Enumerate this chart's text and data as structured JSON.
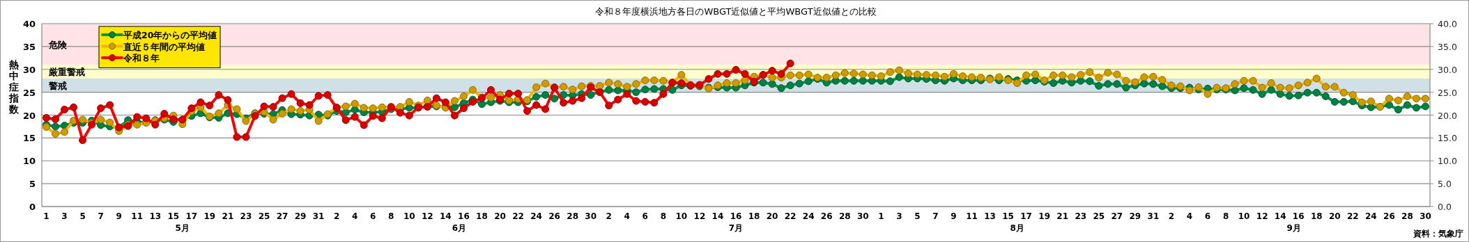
{
  "chart_data": {
    "type": "line",
    "title": "令和８年度横浜地方各日のWBGT近似値と平均WBGT近似値との比較",
    "ylabel": "熱中症指数",
    "annotations": [
      "5月",
      "6月",
      "7月",
      "8月",
      "9月",
      "資料：気象庁"
    ],
    "x": [
      "--05-01",
      "--05-02",
      "--05-03",
      "--05-04",
      "--05-05",
      "--05-06",
      "--05-07",
      "--05-08",
      "--05-09",
      "--05-10",
      "--05-11",
      "--05-12",
      "--05-13",
      "--05-14",
      "--05-15",
      "--05-16",
      "--05-17",
      "--05-18",
      "--05-19",
      "--05-20",
      "--05-21",
      "--05-22",
      "--05-23",
      "--05-24",
      "--05-25",
      "--05-26",
      "--05-27",
      "--05-28",
      "--05-29",
      "--05-30",
      "--05-31",
      "--06-01",
      "--06-02",
      "--06-03",
      "--06-04",
      "--06-05",
      "--06-06",
      "--06-07",
      "--06-08",
      "--06-09",
      "--06-10",
      "--06-11",
      "--06-12",
      "--06-13",
      "--06-14",
      "--06-15",
      "--06-16",
      "--06-17",
      "--06-18",
      "--06-19",
      "--06-20",
      "--06-21",
      "--06-22",
      "--06-23",
      "--06-24",
      "--06-25",
      "--06-26",
      "--06-27",
      "--06-28",
      "--06-29",
      "--06-30",
      "--07-01",
      "--07-02",
      "--07-03",
      "--07-04",
      "--07-05",
      "--07-06",
      "--07-07",
      "--07-08",
      "--07-09",
      "--07-10",
      "--07-11",
      "--07-12",
      "--07-13",
      "--07-14",
      "--07-15",
      "--07-16",
      "--07-17",
      "--07-18",
      "--07-19",
      "--07-20",
      "--07-21",
      "--07-22",
      "--07-23",
      "--07-24",
      "--07-25",
      "--07-26",
      "--07-27",
      "--07-28",
      "--07-29",
      "--07-30",
      "--07-31",
      "--08-01",
      "--08-02",
      "--08-03",
      "--08-04",
      "--08-05",
      "--08-06",
      "--08-07",
      "--08-08",
      "--08-09",
      "--08-10",
      "--08-11",
      "--08-12",
      "--08-13",
      "--08-14",
      "--08-15",
      "--08-16",
      "--08-17",
      "--08-18",
      "--08-19",
      "--08-20",
      "--08-21",
      "--08-22",
      "--08-23",
      "--08-24",
      "--08-25",
      "--08-26",
      "--08-27",
      "--08-28",
      "--08-29",
      "--08-30",
      "--08-31",
      "--09-01",
      "--09-02",
      "--09-03",
      "--09-04",
      "--09-05",
      "--09-06",
      "--09-07",
      "--09-08",
      "--09-09",
      "--09-10",
      "--09-11",
      "--09-12",
      "--09-13",
      "--09-14",
      "--09-15",
      "--09-16",
      "--09-17",
      "--09-18",
      "--09-19",
      "--09-20",
      "--09-21",
      "--09-22",
      "--09-23",
      "--09-24",
      "--09-25",
      "--09-26",
      "--09-27",
      "--09-28",
      "--09-29",
      "--09-30"
    ],
    "xlim": [
      "--05-01",
      "--09-30"
    ],
    "xticks": [
      {
        "value": "--05-01",
        "label": "1"
      },
      {
        "value": "--05-03",
        "label": "3"
      },
      {
        "value": "--05-05",
        "label": "5"
      },
      {
        "value": "--05-07",
        "label": "7"
      },
      {
        "value": "--05-09",
        "label": "9"
      },
      {
        "value": "--05-11",
        "label": "11"
      },
      {
        "value": "--05-13",
        "label": "13"
      },
      {
        "value": "--05-15",
        "label": "15"
      },
      {
        "value": "--05-17",
        "label": "17"
      },
      {
        "value": "--05-19",
        "label": "19"
      },
      {
        "value": "--05-21",
        "label": "21"
      },
      {
        "value": "--05-23",
        "label": "23"
      },
      {
        "value": "--05-25",
        "label": "25"
      },
      {
        "value": "--05-27",
        "label": "27"
      },
      {
        "value": "--05-29",
        "label": "29"
      },
      {
        "value": "--05-31",
        "label": "31"
      },
      {
        "value": "--06-02",
        "label": "2"
      },
      {
        "value": "--06-04",
        "label": "4"
      },
      {
        "value": "--06-06",
        "label": "6"
      },
      {
        "value": "--06-08",
        "label": "8"
      },
      {
        "value": "--06-10",
        "label": "10"
      },
      {
        "value": "--06-12",
        "label": "12"
      },
      {
        "value": "--06-14",
        "label": "14"
      },
      {
        "value": "--06-16",
        "label": "16"
      },
      {
        "value": "--06-18",
        "label": "18"
      },
      {
        "value": "--06-20",
        "label": "20"
      },
      {
        "value": "--06-22",
        "label": "22"
      },
      {
        "value": "--06-24",
        "label": "24"
      },
      {
        "value": "--06-26",
        "label": "26"
      },
      {
        "value": "--06-28",
        "label": "28"
      },
      {
        "value": "--06-30",
        "label": "30"
      },
      {
        "value": "--07-02",
        "label": "2"
      },
      {
        "value": "--07-04",
        "label": "4"
      },
      {
        "value": "--07-06",
        "label": "6"
      },
      {
        "value": "--07-08",
        "label": "8"
      },
      {
        "value": "--07-10",
        "label": "10"
      },
      {
        "value": "--07-12",
        "label": "12"
      },
      {
        "value": "--07-14",
        "label": "14"
      },
      {
        "value": "--07-16",
        "label": "16"
      },
      {
        "value": "--07-18",
        "label": "18"
      },
      {
        "value": "--07-20",
        "label": "20"
      },
      {
        "value": "--07-22",
        "label": "22"
      },
      {
        "value": "--07-24",
        "label": "24"
      },
      {
        "value": "--07-26",
        "label": "26"
      },
      {
        "value": "--07-28",
        "label": "28"
      },
      {
        "value": "--07-30",
        "label": "30"
      },
      {
        "value": "--08-01",
        "label": "1"
      },
      {
        "value": "--08-03",
        "label": "3"
      },
      {
        "value": "--08-05",
        "label": "5"
      },
      {
        "value": "--08-07",
        "label": "7"
      },
      {
        "value": "--08-09",
        "label": "9"
      },
      {
        "value": "--08-11",
        "label": "11"
      },
      {
        "value": "--08-13",
        "label": "13"
      },
      {
        "value": "--08-15",
        "label": "15"
      },
      {
        "value": "--08-17",
        "label": "17"
      },
      {
        "value": "--08-19",
        "label": "19"
      },
      {
        "value": "--08-21",
        "label": "21"
      },
      {
        "value": "--08-23",
        "label": "23"
      },
      {
        "value": "--08-25",
        "label": "25"
      },
      {
        "value": "--08-27",
        "label": "27"
      },
      {
        "value": "--08-29",
        "label": "29"
      },
      {
        "value": "--08-31",
        "label": "31"
      },
      {
        "value": "--09-02",
        "label": "2"
      },
      {
        "value": "--09-04",
        "label": "4"
      },
      {
        "value": "--09-06",
        "label": "6"
      },
      {
        "value": "--09-08",
        "label": "8"
      },
      {
        "value": "--09-10",
        "label": "10"
      },
      {
        "value": "--09-12",
        "label": "12"
      },
      {
        "value": "--09-14",
        "label": "14"
      },
      {
        "value": "--09-16",
        "label": "16"
      },
      {
        "value": "--09-18",
        "label": "18"
      },
      {
        "value": "--09-20",
        "label": "20"
      },
      {
        "value": "--09-22",
        "label": "22"
      },
      {
        "value": "--09-24",
        "label": "24"
      },
      {
        "value": "--09-26",
        "label": "26"
      },
      {
        "value": "--09-28",
        "label": "28"
      },
      {
        "value": "--09-30",
        "label": "30"
      }
    ],
    "ylim": [
      0,
      40
    ],
    "yticks": [
      0,
      5,
      10,
      15,
      20,
      25,
      30,
      35,
      40
    ],
    "y2lim": [
      0,
      40
    ],
    "y2ticks": [
      {
        "value": 0,
        "label": "0.0"
      },
      {
        "value": 5,
        "label": "5.0"
      },
      {
        "value": 10,
        "label": "10.0"
      },
      {
        "value": 15,
        "label": "15.0"
      },
      {
        "value": 20,
        "label": "20.0"
      },
      {
        "value": 25,
        "label": "25.0"
      },
      {
        "value": 30,
        "label": "30.0"
      },
      {
        "value": 35,
        "label": "35.0"
      },
      {
        "value": 40,
        "label": "40.0"
      }
    ],
    "bands": [
      {
        "axis": "y",
        "from": 31,
        "to": 40,
        "label": "危険",
        "color": "#ffe3e6"
      },
      {
        "axis": "y",
        "from": 28,
        "to": 31,
        "label": "厳重警戒",
        "color": "#fffdcc"
      },
      {
        "axis": "y",
        "from": 25,
        "to": 28,
        "label": "警戒",
        "color": "#d1dfe6"
      }
    ],
    "grid": "y",
    "legend": "top left",
    "marker": "circle",
    "line_style": "solid",
    "series": [
      {
        "name": "平成20年からの平均値",
        "color": "#00964f",
        "values": [
          17.9,
          17.5,
          17.7,
          18.3,
          18.3,
          18.8,
          17.8,
          17.5,
          17.3,
          18.9,
          18.5,
          18.4,
          18.9,
          19.0,
          18.5,
          19.0,
          19.8,
          20.4,
          19.5,
          19.4,
          20.4,
          20.2,
          19.3,
          20.4,
          20.3,
          20.2,
          21.1,
          20.2,
          20.1,
          19.9,
          20.1,
          19.9,
          20.9,
          20.6,
          21.2,
          20.6,
          20.6,
          20.7,
          21.3,
          21.3,
          21.6,
          21.6,
          21.9,
          21.9,
          21.9,
          21.7,
          22.6,
          23.4,
          22.4,
          22.8,
          23.1,
          22.8,
          22.8,
          23.0,
          24.0,
          24.4,
          23.6,
          24.4,
          24.3,
          24.6,
          24.4,
          25.1,
          25.5,
          25.4,
          25.4,
          25.0,
          25.6,
          25.7,
          25.7,
          25.5,
          26.5,
          26.4,
          26.3,
          26.0,
          26.1,
          26.0,
          26.0,
          26.5,
          27.1,
          27.1,
          26.8,
          25.9,
          26.5,
          26.9,
          27.4,
          27.9,
          27.1,
          27.5,
          27.5,
          27.5,
          27.5,
          27.5,
          27.5,
          27.4,
          28.3,
          28.0,
          28.0,
          27.9,
          27.6,
          27.5,
          28.0,
          27.6,
          27.6,
          27.6,
          28.0,
          27.6,
          27.9,
          27.6,
          27.5,
          27.6,
          27.3,
          27.0,
          27.5,
          27.1,
          27.5,
          27.4,
          26.4,
          26.8,
          26.8,
          26.0,
          26.5,
          26.9,
          26.8,
          26.3,
          25.9,
          25.9,
          26.0,
          25.6,
          25.8,
          25.6,
          25.6,
          25.4,
          25.9,
          25.5,
          24.6,
          25.5,
          24.6,
          24.2,
          24.3,
          24.9,
          24.9,
          24.1,
          22.9,
          22.9,
          23.0,
          22.1,
          21.7,
          21.8,
          22.2,
          21.2,
          22.2,
          21.6,
          21.9
        ]
      },
      {
        "name": "直近５年間の平均値",
        "color": "#f2b600",
        "values": [
          17.4,
          15.9,
          16.3,
          18.8,
          19.0,
          18.3,
          19.0,
          18.4,
          16.5,
          17.9,
          17.9,
          18.3,
          18.8,
          19.3,
          19.9,
          18.0,
          20.8,
          21.7,
          19.7,
          20.4,
          22.2,
          21.3,
          18.7,
          20.3,
          20.7,
          19.0,
          20.3,
          21.3,
          20.9,
          21.2,
          18.7,
          20.2,
          21.7,
          21.9,
          22.5,
          21.6,
          21.5,
          21.7,
          21.7,
          21.8,
          22.9,
          22.1,
          23.2,
          22.1,
          21.6,
          23.1,
          24.1,
          25.5,
          23.9,
          23.8,
          24.4,
          23.2,
          23.5,
          23.3,
          26.1,
          26.9,
          26.1,
          26.2,
          25.6,
          26.3,
          26.4,
          26.4,
          27.1,
          26.8,
          26.2,
          26.8,
          27.6,
          27.6,
          27.5,
          27.1,
          28.8,
          26.6,
          26.5,
          25.8,
          26.5,
          27.0,
          27.0,
          27.6,
          28.4,
          28.8,
          28.2,
          28.2,
          28.7,
          28.7,
          28.9,
          28.2,
          28.2,
          28.7,
          29.2,
          29.1,
          28.9,
          28.7,
          28.5,
          29.4,
          29.8,
          29.1,
          28.9,
          28.8,
          28.7,
          28.4,
          29.0,
          28.5,
          28.3,
          28.2,
          27.8,
          28.3,
          27.6,
          27.0,
          28.7,
          28.9,
          27.6,
          28.7,
          28.7,
          28.3,
          28.8,
          29.4,
          28.2,
          29.3,
          28.9,
          27.5,
          27.2,
          28.3,
          28.4,
          27.7,
          26.5,
          26.3,
          25.4,
          26.1,
          24.6,
          26.0,
          25.9,
          26.8,
          27.5,
          27.5,
          26.0,
          27.0,
          26.0,
          25.9,
          26.5,
          27.1,
          28.0,
          26.2,
          26.2,
          24.9,
          24.4,
          22.8,
          23.0,
          21.8,
          23.6,
          23.2,
          24.1,
          23.6,
          23.6
        ]
      },
      {
        "name": "令和８年",
        "color": "#ff0000",
        "values": [
          19.4,
          19.1,
          21.2,
          21.7,
          14.5,
          17.9,
          21.5,
          22.2,
          17.3,
          17.6,
          19.6,
          19.3,
          17.9,
          20.3,
          19.1,
          19.0,
          21.5,
          22.8,
          22.1,
          24.4,
          23.3,
          15.2,
          15.2,
          19.8,
          21.9,
          21.8,
          23.7,
          24.6,
          22.6,
          22.2,
          24.2,
          24.4,
          21.6,
          18.9,
          19.6,
          17.8,
          19.8,
          19.3,
          21.8,
          20.5,
          19.9,
          21.7,
          21.8,
          23.7,
          22.8,
          19.9,
          21.5,
          22.9,
          23.7,
          25.5,
          23.4,
          24.7,
          24.7,
          20.9,
          22.2,
          21.3,
          26.0,
          22.7,
          23.1,
          23.7,
          26.1,
          25.0,
          22.1,
          23.4,
          24.6,
          23.1,
          22.9,
          22.7,
          24.6,
          27.1,
          27.0,
          26.5,
          26.6,
          27.9,
          29.0,
          29.0,
          29.9,
          29.0,
          27.3,
          28.8,
          29.7,
          29.0,
          31.3,
          null,
          null,
          null,
          null,
          null,
          null,
          null,
          null,
          null,
          null,
          null,
          null,
          null,
          null,
          null,
          null,
          null,
          null,
          null,
          null,
          null,
          null,
          null,
          null,
          null,
          null,
          null,
          null,
          null,
          null,
          null,
          null,
          null,
          null,
          null,
          null,
          null,
          null,
          null,
          null,
          null,
          null,
          null,
          null,
          null,
          null,
          null,
          null,
          null,
          null,
          null,
          null,
          null,
          null,
          null,
          null,
          null,
          null,
          null,
          null,
          null,
          null,
          null,
          null,
          null,
          null,
          null,
          null,
          null,
          null
        ]
      }
    ]
  }
}
